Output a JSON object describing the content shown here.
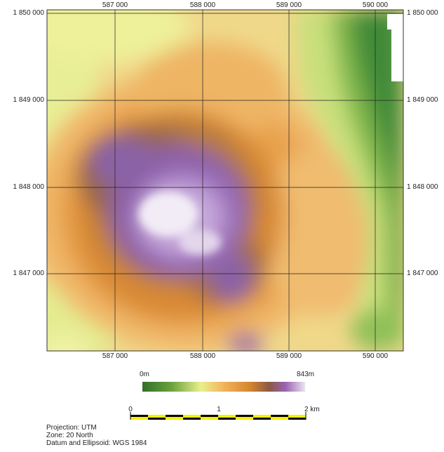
{
  "map": {
    "x_ticks": [
      "587 000",
      "588 000",
      "589 000",
      "590 000"
    ],
    "y_ticks": [
      "1 850 000",
      "1 849 000",
      "1 848 000",
      "1 847 000"
    ]
  },
  "legend": {
    "min_label": "0m",
    "max_label": "843m",
    "colors": [
      "#2f6f2a",
      "#6aa23d",
      "#e9f08e",
      "#f2b35c",
      "#d5862e",
      "#8a5a45",
      "#9b63b3",
      "#ece4f2"
    ]
  },
  "scale_bar": {
    "labels": [
      "0",
      "1",
      "2 km"
    ],
    "colors": [
      "#f5f000",
      "#000000"
    ]
  },
  "info": {
    "projection": "Projection: UTM",
    "zone": "Zone: 20 North",
    "datum": "Datum and Ellipsoid: WGS 1984"
  }
}
